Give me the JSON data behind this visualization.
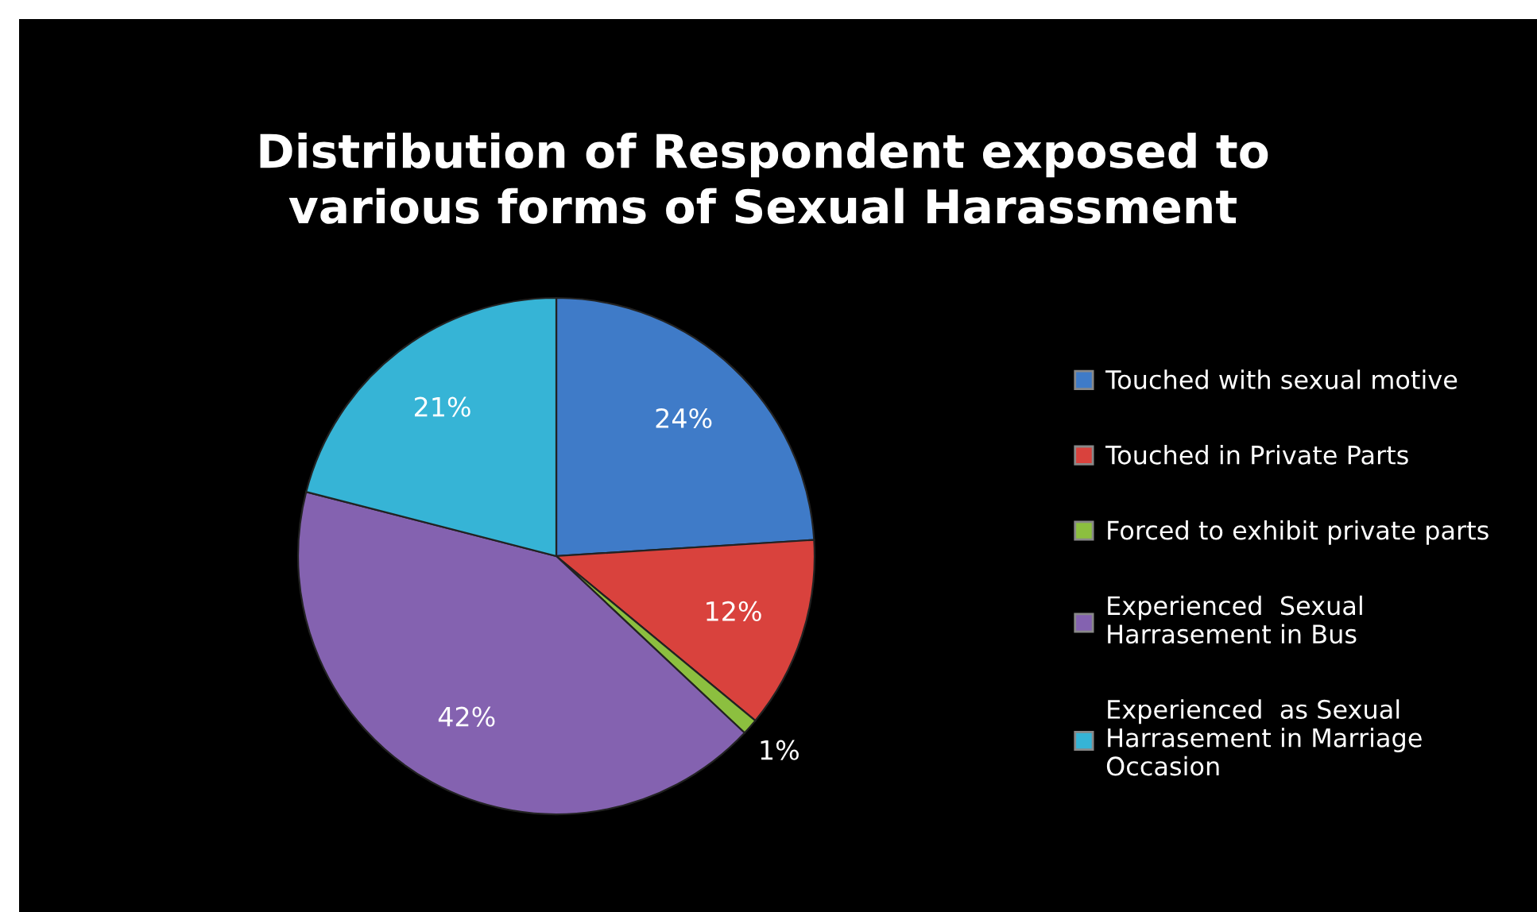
{
  "chart_data": {
    "type": "pie",
    "title": "Distribution of Respondent exposed to\nvarious forms of Sexual Harassment",
    "categories": [
      "Touched with sexual motive",
      "Touched in Private Parts",
      "Forced to exhibit private parts",
      "Experienced  Sexual Harrasement in Bus",
      "Experienced  as Sexual Harrasement in Marriage Occasion"
    ],
    "values": [
      24,
      12,
      1,
      42,
      21
    ],
    "colors": [
      "#3f7bc8",
      "#d9423d",
      "#8cbf3f",
      "#8462b0",
      "#36b4d6"
    ],
    "value_labels": [
      "24%",
      "12%",
      "1%",
      "42%",
      "21%"
    ],
    "legend": "right"
  }
}
